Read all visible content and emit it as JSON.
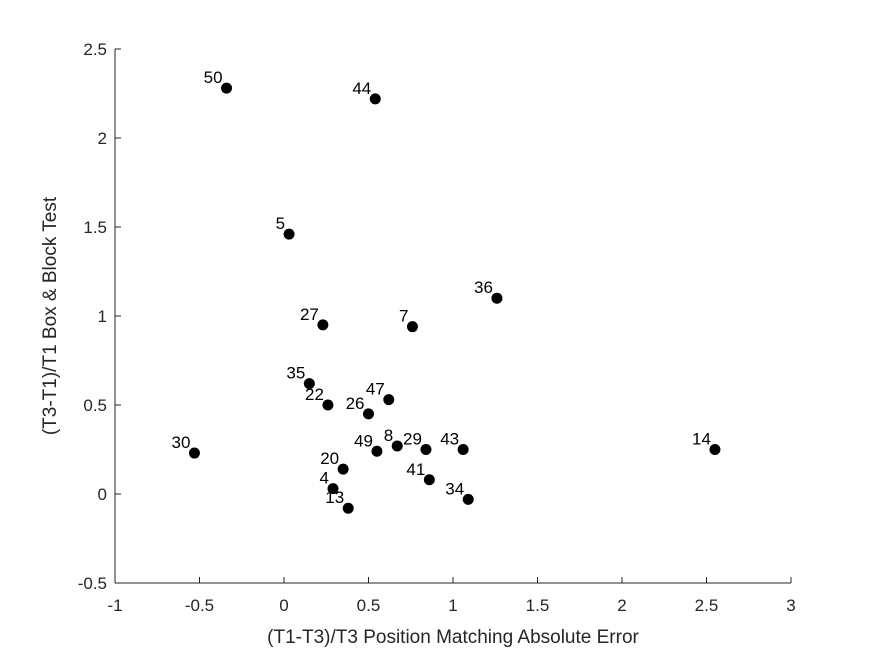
{
  "chart_data": {
    "type": "scatter",
    "title": "",
    "xlabel": "(T1-T3)/T3 Position Matching Absolute Error",
    "ylabel": "(T3-T1)/T1 Box & Block Test",
    "xlim": [
      -1,
      3
    ],
    "ylim": [
      -0.5,
      2.5
    ],
    "xticks": [
      "-1",
      "-0.5",
      "0",
      "0.5",
      "1",
      "1.5",
      "2",
      "2.5",
      "3"
    ],
    "yticks": [
      "-0.5",
      "0",
      "0.5",
      "1",
      "1.5",
      "2",
      "2.5"
    ],
    "grid": false,
    "legend": "none",
    "marker_color": "#000000",
    "axis_color": "#262626",
    "points": [
      {
        "label": "50",
        "x": -0.34,
        "y": 2.28
      },
      {
        "label": "44",
        "x": 0.54,
        "y": 2.22
      },
      {
        "label": "5",
        "x": 0.03,
        "y": 1.46
      },
      {
        "label": "36",
        "x": 1.26,
        "y": 1.1
      },
      {
        "label": "27",
        "x": 0.23,
        "y": 0.95
      },
      {
        "label": "7",
        "x": 0.76,
        "y": 0.94
      },
      {
        "label": "35",
        "x": 0.15,
        "y": 0.62
      },
      {
        "label": "47",
        "x": 0.62,
        "y": 0.53
      },
      {
        "label": "22",
        "x": 0.26,
        "y": 0.5
      },
      {
        "label": "26",
        "x": 0.5,
        "y": 0.45
      },
      {
        "label": "30",
        "x": -0.53,
        "y": 0.23
      },
      {
        "label": "49",
        "x": 0.55,
        "y": 0.24
      },
      {
        "label": "8",
        "x": 0.67,
        "y": 0.27
      },
      {
        "label": "29",
        "x": 0.84,
        "y": 0.25
      },
      {
        "label": "43",
        "x": 1.06,
        "y": 0.25
      },
      {
        "label": "14",
        "x": 2.55,
        "y": 0.25
      },
      {
        "label": "20",
        "x": 0.35,
        "y": 0.14
      },
      {
        "label": "41",
        "x": 0.86,
        "y": 0.08
      },
      {
        "label": "4",
        "x": 0.29,
        "y": 0.03
      },
      {
        "label": "34",
        "x": 1.09,
        "y": -0.03
      },
      {
        "label": "13",
        "x": 0.38,
        "y": -0.08
      }
    ]
  }
}
